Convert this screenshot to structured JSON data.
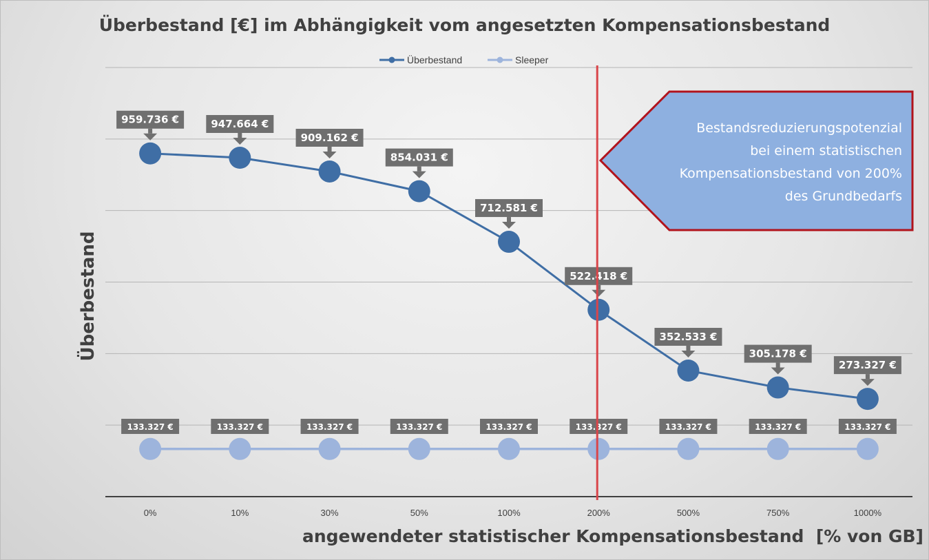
{
  "chart_data": {
    "type": "line",
    "title": "Überbestand [€] im Abhängigkeit vom angesetzten Kompensationsbestand",
    "xlabel": "angewendeter statistischer Kompensationsbestand  [% von GB]",
    "ylabel": "Überbestand",
    "categories": [
      "0%",
      "10%",
      "30%",
      "50%",
      "100%",
      "200%",
      "500%",
      "750%",
      "1000%"
    ],
    "series": [
      {
        "name": "Überbestand",
        "color": "#3f6ea5",
        "values": [
          959736,
          947664,
          909162,
          854031,
          712581,
          522418,
          352533,
          305178,
          273327
        ],
        "labels": [
          "959.736 €",
          "947.664 €",
          "909.162 €",
          "854.031 €",
          "712.581 €",
          "522.418 €",
          "352.533 €",
          "305.178 €",
          "273.327 €"
        ]
      },
      {
        "name": "Sleeper",
        "color": "#9db4dc",
        "values": [
          133327,
          133327,
          133327,
          133327,
          133327,
          133327,
          133327,
          133327,
          133327
        ],
        "labels": [
          "133.327 €",
          "133.327 €",
          "133.327 €",
          "133.327 €",
          "133.327 €",
          "133.327 €",
          "133.327 €",
          "133.327 €",
          "133.327 €"
        ]
      }
    ],
    "reference_line": {
      "category": "200%",
      "color": "#d9454a"
    },
    "grid": true,
    "legend": "top-center",
    "y_tick_labels_shown": false
  },
  "callout": {
    "lines": [
      "Bestandsreduzierungspotenzial",
      "bei einem statistischen",
      "Kompensationsbestand von 200%",
      "des Grundbedarfs"
    ],
    "fill": "#8eb0e0",
    "border": "#b1131c"
  }
}
